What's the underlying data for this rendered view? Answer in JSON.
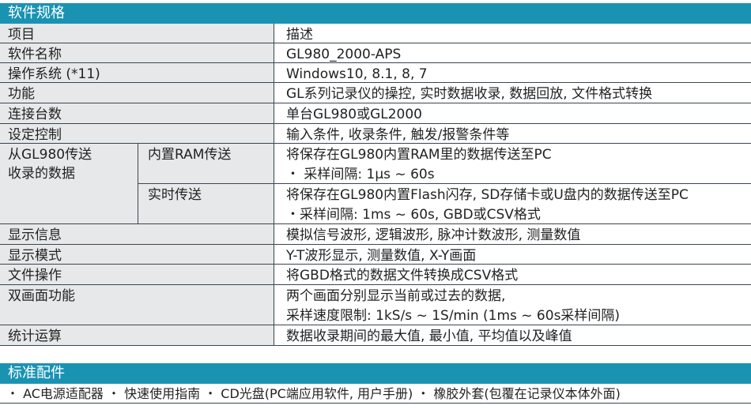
{
  "spec": {
    "title": "软件规格",
    "header": {
      "item": "项目",
      "desc": "描述"
    },
    "rows": [
      {
        "item": "软件名称",
        "desc": "GL980_2000-APS"
      },
      {
        "item": "操作系统 (*11)",
        "desc": "Windows10, 8.1, 8, 7"
      },
      {
        "item": "功能",
        "desc": "GL系列记录仪的操控, 实时数据收录, 数据回放, 文件格式转换"
      },
      {
        "item": "连接台数",
        "desc": "单台GL980或GL2000"
      },
      {
        "item": "设定控制",
        "desc": "输入条件, 收录条件, 触发/报警条件等"
      }
    ],
    "transfer": {
      "item_line1": "从GL980传送",
      "item_line2": "收录的数据",
      "ram": {
        "label": "内置RAM传送",
        "line1": "将保存在GL980内置RAM里的数据传送至PC",
        "line2": "・ 采样间隔: 1μs ~ 60s"
      },
      "realtime": {
        "label": "实时传送",
        "line1": "将保存在GL980内置Flash闪存, SD存储卡或U盘内的数据传送至PC",
        "line2": "・采样间隔: 1ms ~ 60s, GBD或CSV格式"
      }
    },
    "rows2": [
      {
        "item": "显示信息",
        "desc": "模拟信号波形, 逻辑波形, 脉冲计数波形, 测量数值"
      },
      {
        "item": "显示模式",
        "desc": "Y-T波形显示, 测量数值, X-Y画面"
      },
      {
        "item": "文件操作",
        "desc": "将GBD格式的数据文件转换成CSV格式"
      }
    ],
    "dual": {
      "item": "双画面功能",
      "line1": "两个画面分别显示当前或过去的数据,",
      "line2": "采样速度限制: 1kS/s ~ 1S/min (1ms ~ 60s采样间隔)"
    },
    "stats": {
      "item": "统计运算",
      "desc": "数据收录期间的最大值, 最小值, 平均值以及峰值"
    }
  },
  "accessories": {
    "title": "标准配件",
    "text": "・ AC电源适配器 ・ 快速使用指南 ・ CD光盘(PC端应用软件, 用户手册) ・ 橡胶外套(包覆在记录仪本体外面)"
  },
  "colors": {
    "header": "#1a93b3",
    "label_bg": "#e6e8ea",
    "rule": "#3a4650"
  }
}
